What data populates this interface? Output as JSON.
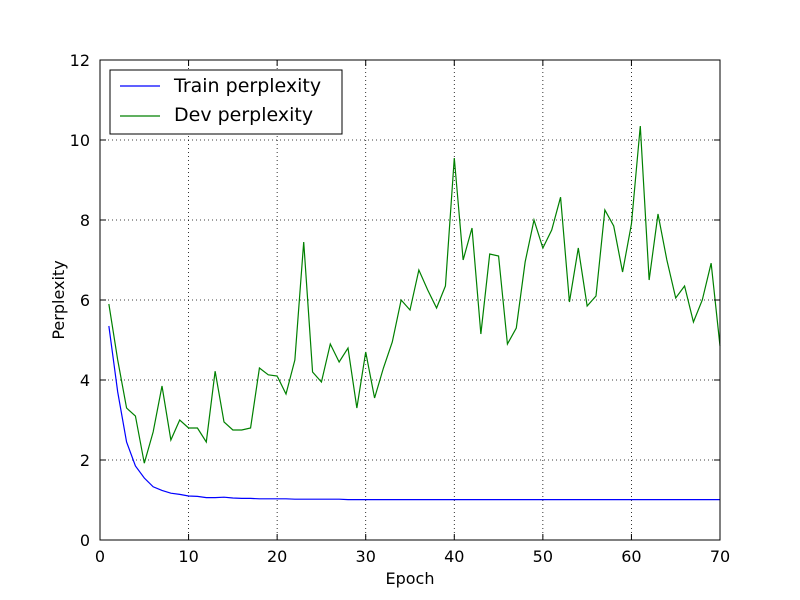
{
  "chart_data": {
    "type": "line",
    "title": "",
    "xlabel": "Epoch",
    "ylabel": "Perplexity",
    "xlim": [
      0,
      70
    ],
    "ylim": [
      0,
      12
    ],
    "xticks": [
      "0",
      "10",
      "20",
      "30",
      "40",
      "50",
      "60",
      "70"
    ],
    "yticks": [
      "0",
      "2",
      "4",
      "6",
      "8",
      "10",
      "12"
    ],
    "grid": true,
    "legend": "top-left",
    "x": [
      1,
      2,
      3,
      4,
      5,
      6,
      7,
      8,
      9,
      10,
      11,
      12,
      13,
      14,
      15,
      16,
      17,
      18,
      19,
      20,
      21,
      22,
      23,
      24,
      25,
      26,
      27,
      28,
      29,
      30,
      31,
      32,
      33,
      34,
      35,
      36,
      37,
      38,
      39,
      40,
      41,
      42,
      43,
      44,
      45,
      46,
      47,
      48,
      49,
      50,
      51,
      52,
      53,
      54,
      55,
      56,
      57,
      58,
      59,
      60,
      61,
      62,
      63,
      64,
      65,
      66,
      67,
      68,
      69,
      70
    ],
    "series": [
      {
        "name": "Train perplexity",
        "color": "#0000ff",
        "values": [
          5.35,
          3.7,
          2.45,
          1.85,
          1.55,
          1.33,
          1.24,
          1.17,
          1.14,
          1.1,
          1.09,
          1.06,
          1.06,
          1.07,
          1.05,
          1.04,
          1.04,
          1.03,
          1.03,
          1.03,
          1.03,
          1.02,
          1.02,
          1.02,
          1.02,
          1.02,
          1.02,
          1.01,
          1.01,
          1.01,
          1.01,
          1.01,
          1.01,
          1.01,
          1.01,
          1.01,
          1.01,
          1.01,
          1.01,
          1.01,
          1.01,
          1.01,
          1.01,
          1.01,
          1.01,
          1.01,
          1.01,
          1.01,
          1.01,
          1.01,
          1.01,
          1.01,
          1.01,
          1.01,
          1.01,
          1.01,
          1.01,
          1.01,
          1.01,
          1.01,
          1.01,
          1.01,
          1.01,
          1.01,
          1.01,
          1.01,
          1.01,
          1.01,
          1.01,
          1.01
        ]
      },
      {
        "name": "Dev perplexity",
        "color": "#008000",
        "values": [
          5.9,
          4.5,
          3.3,
          3.1,
          1.92,
          2.7,
          3.85,
          2.5,
          3.0,
          2.8,
          2.8,
          2.45,
          4.22,
          2.95,
          2.75,
          2.75,
          2.8,
          4.3,
          4.13,
          4.1,
          3.65,
          4.5,
          7.45,
          4.2,
          3.95,
          4.9,
          4.45,
          4.8,
          3.3,
          4.7,
          3.55,
          4.3,
          4.95,
          6.0,
          5.75,
          6.75,
          6.25,
          5.8,
          6.35,
          9.55,
          7.0,
          7.8,
          5.15,
          7.15,
          7.1,
          4.9,
          5.3,
          6.95,
          8.0,
          7.3,
          7.75,
          8.57,
          5.95,
          7.3,
          5.85,
          6.1,
          8.25,
          7.85,
          6.7,
          7.9,
          10.35,
          6.5,
          8.15,
          7.0,
          6.05,
          6.35,
          5.45,
          6.0,
          6.92,
          4.85
        ]
      }
    ]
  }
}
